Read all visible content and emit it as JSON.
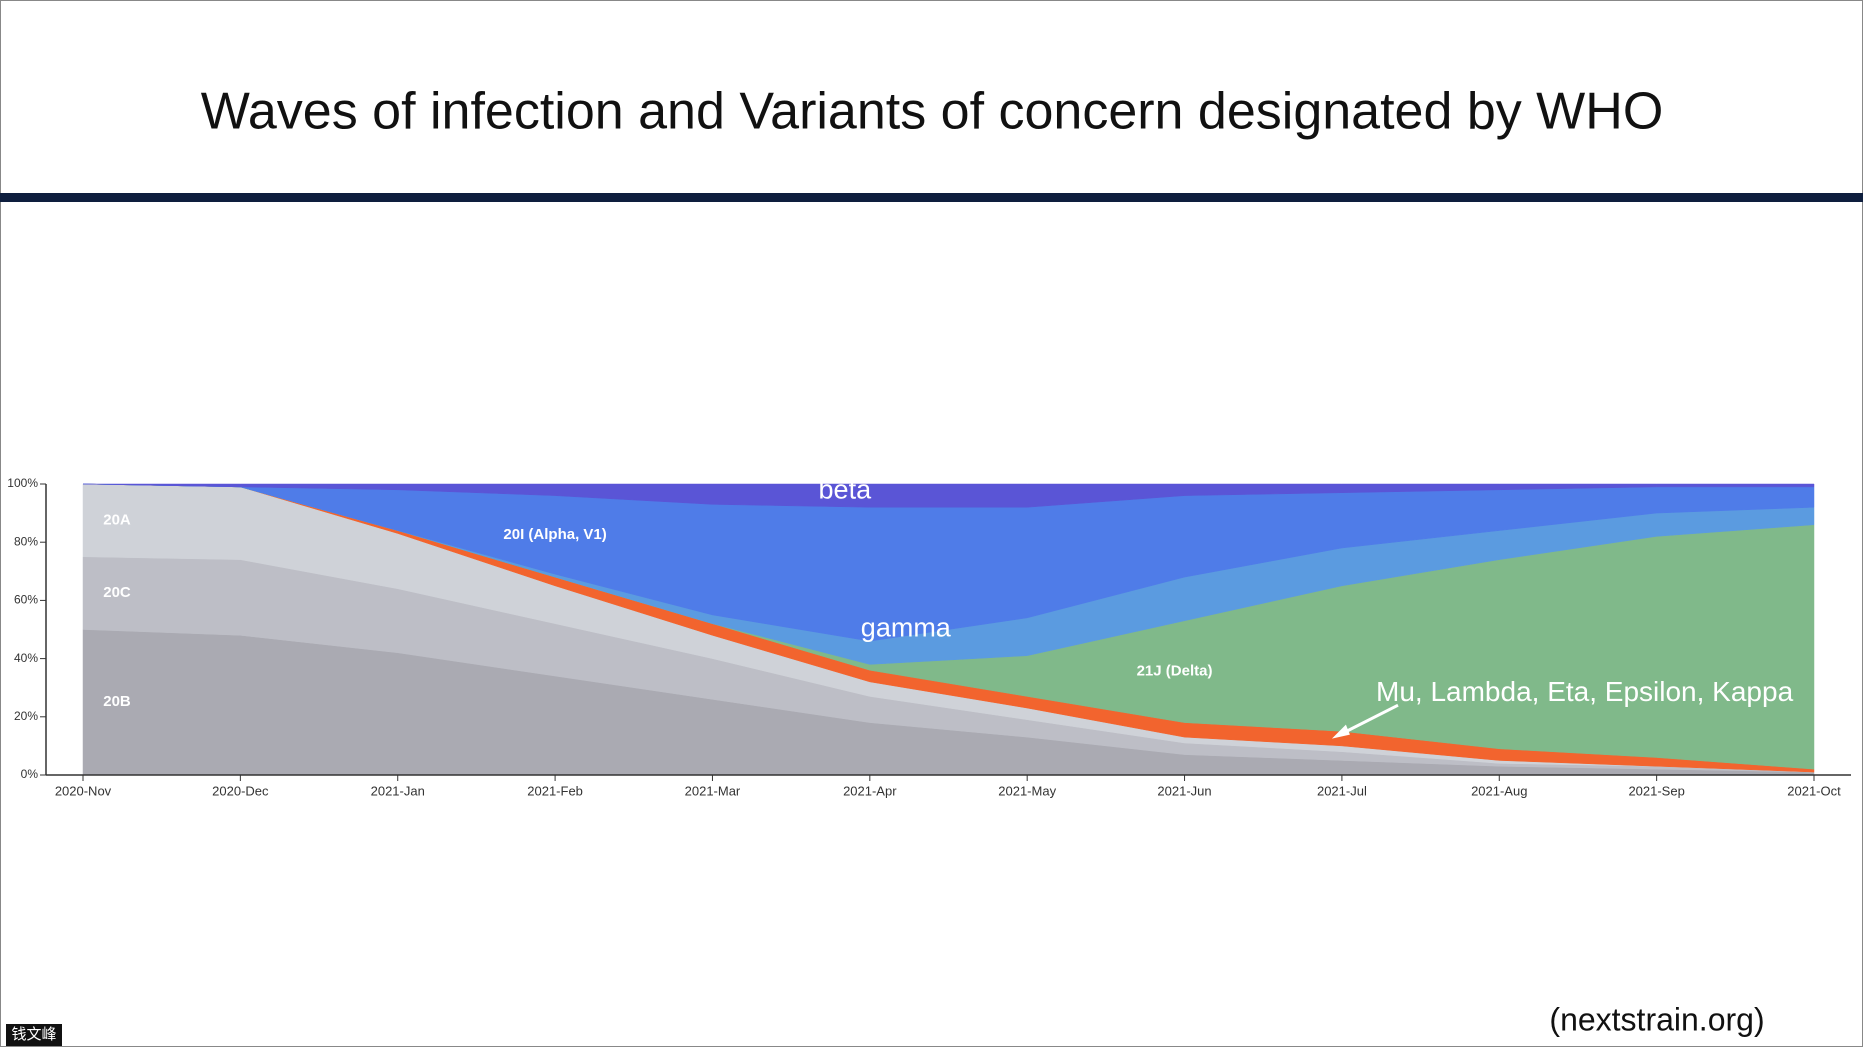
{
  "title": "Waves of infection and Variants of concern designated by WHO",
  "source": "(nextstrain.org)",
  "watermark": "钱文峰",
  "chart_data": {
    "type": "stacked-area",
    "x": [
      "2020-Nov",
      "2020-Dec",
      "2021-Jan",
      "2021-Feb",
      "2021-Mar",
      "2021-Apr",
      "2021-May",
      "2021-Jun",
      "2021-Jul",
      "2021-Aug",
      "2021-Sep",
      "2021-Oct"
    ],
    "series": [
      {
        "name": "20B",
        "color": "#aaaab2",
        "values": [
          50,
          48,
          42,
          34,
          26,
          18,
          13,
          7,
          5,
          3,
          2,
          1
        ]
      },
      {
        "name": "20C",
        "color": "#bdbec6",
        "values": [
          25,
          26,
          22,
          18,
          14,
          9,
          6,
          4,
          3,
          1,
          1,
          0
        ]
      },
      {
        "name": "20A",
        "color": "#cfd2d8",
        "values": [
          25,
          25,
          19,
          13,
          8,
          5,
          4,
          2,
          2,
          1,
          0,
          0
        ]
      },
      {
        "name": "Mu, Lambda, Eta, Epsilon, Kappa",
        "color": "#f2642e",
        "values": [
          0,
          0,
          1,
          3,
          4,
          4,
          4,
          5,
          5,
          4,
          3,
          1
        ]
      },
      {
        "name": "21J (Delta)",
        "color": "#80b98a",
        "values": [
          0,
          0,
          0,
          0,
          0,
          2,
          14,
          35,
          50,
          65,
          76,
          84
        ]
      },
      {
        "name": "gamma",
        "color": "#5b9be0",
        "values": [
          0,
          0,
          0,
          1,
          3,
          8,
          13,
          15,
          13,
          10,
          8,
          6
        ]
      },
      {
        "name": "20I (Alpha, V1)",
        "color": "#4f7ce8",
        "values": [
          0,
          0,
          14,
          27,
          38,
          46,
          38,
          28,
          19,
          14,
          9,
          7
        ]
      },
      {
        "name": "beta",
        "color": "#5a55d6",
        "values": [
          0,
          1,
          2,
          4,
          7,
          8,
          8,
          4,
          3,
          2,
          1,
          1
        ]
      }
    ],
    "ylim": [
      0,
      100
    ],
    "yticks": [
      {
        "value": 0,
        "label": "0%"
      },
      {
        "value": 20,
        "label": "20%"
      },
      {
        "value": 40,
        "label": "40%"
      },
      {
        "value": 60,
        "label": "60%"
      },
      {
        "value": 80,
        "label": "80%"
      },
      {
        "value": 100,
        "label": "100%"
      }
    ]
  }
}
